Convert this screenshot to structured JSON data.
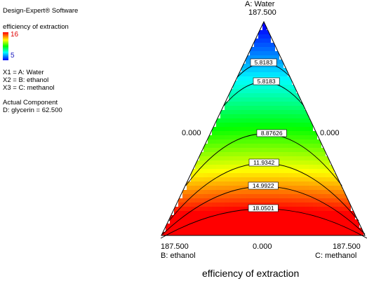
{
  "legend": {
    "software": "Design-Expert® Software",
    "response": "efficiency of extraction",
    "scale_max": "16",
    "scale_min": "5",
    "factors": [
      "X1 = A: Water",
      "X2 = B: ethanol",
      "X3 = C: methanol"
    ],
    "actual_component_title": "Actual Component",
    "actual_component_value": "D: glycerin = 62.500"
  },
  "chart_data": {
    "type": "heatmap",
    "plot_kind": "ternary contour",
    "title": "efficiency of extraction",
    "vertices": {
      "top": {
        "name": "A: Water",
        "value": "187.500"
      },
      "bottom_left": {
        "name": "B: ethanol",
        "value": "187.500"
      },
      "bottom_right": {
        "name": "C: methanol",
        "value": "187.500"
      }
    },
    "edge_labels": {
      "left": "0.000",
      "right": "0.000",
      "bottom": "0.000"
    },
    "color_scale": {
      "min": 5,
      "max": 16,
      "colors": [
        "#0000ff",
        "#00ffff",
        "#00ff00",
        "#ffff00",
        "#ff0000"
      ]
    },
    "contours": [
      {
        "label": "5.8183",
        "value": 5.8183
      },
      {
        "label": "5.8183",
        "value": 5.8183
      },
      {
        "label": "8.87626",
        "value": 8.87626
      },
      {
        "label": "11.9342",
        "value": 11.9342
      },
      {
        "label": "14.9922",
        "value": 14.9922
      },
      {
        "label": "18.0501",
        "value": 18.0501
      }
    ]
  }
}
